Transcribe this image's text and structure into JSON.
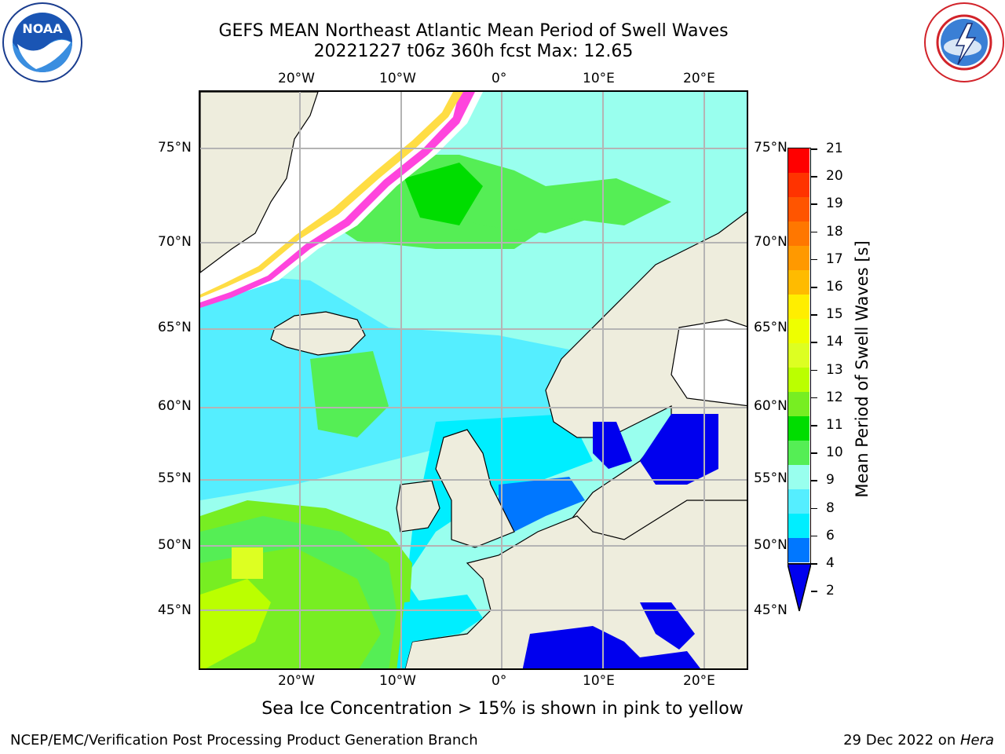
{
  "header": {
    "title_line1": "GEFS MEAN Northeast Atlantic Mean Period of Swell Waves",
    "title_line2": "20221227 t06z 360h fcst   Max: 12.65"
  },
  "logos": {
    "left": "noaa-logo",
    "right": "national-weather-service-logo"
  },
  "map": {
    "top_lon_labels": [
      "20°W",
      "10°W",
      "0°",
      "10°E",
      "20°E"
    ],
    "bottom_lon_labels": [
      "20°W",
      "10°W",
      "0°",
      "10°E",
      "20°E"
    ],
    "left_lat_labels": [
      "75°N",
      "70°N",
      "65°N",
      "60°N",
      "55°N",
      "50°N",
      "45°N"
    ],
    "right_lat_labels": [
      "75°N",
      "70°N",
      "65°N",
      "60°N",
      "55°N",
      "50°N",
      "45°N"
    ],
    "colors": {
      "land": "#eeeddd",
      "sea_ice": "#ffffff",
      "ice_edge_pink": "#ff44dd",
      "ice_edge_yellow": "#ffdd44",
      "grid": "#b4b4b4"
    }
  },
  "colorbar": {
    "title": "Mean Period of Swell Waves [s]",
    "tick_labels": [
      "21",
      "20",
      "19",
      "18",
      "17",
      "16",
      "15",
      "14",
      "13",
      "12",
      "11",
      "10",
      "9",
      "8",
      "6",
      "4",
      "2"
    ],
    "colors_top_to_bottom": [
      "#ff0000",
      "#ff3300",
      "#ff5500",
      "#ff7700",
      "#ff9900",
      "#ffbb00",
      "#ffee00",
      "#eeff00",
      "#ddff22",
      "#bbff00",
      "#77ee22",
      "#00dd00",
      "#55ee55",
      "#99ffee",
      "#55eeff",
      "#00eeff",
      "#0077ff"
    ],
    "under_color": "#0000ee"
  },
  "note": "Sea Ice Concentration > 15% is shown in pink to yellow",
  "footer": {
    "left": "NCEP/EMC/Verification Post Processing Product Generation Branch",
    "right_date": "29 Dec 2022 on ",
    "right_host": "Hera"
  }
}
